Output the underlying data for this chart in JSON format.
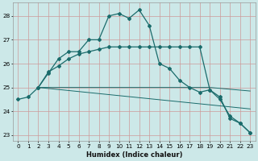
{
  "xlabel": "Humidex (Indice chaleur)",
  "bg_color": "#cce8e8",
  "grid_color": "#cc9999",
  "line_color": "#1a6b6b",
  "xlim": [
    -0.5,
    23.5
  ],
  "ylim": [
    22.75,
    28.55
  ],
  "yticks": [
    23,
    24,
    25,
    26,
    27,
    28
  ],
  "xticks": [
    0,
    1,
    2,
    3,
    4,
    5,
    6,
    7,
    8,
    9,
    10,
    11,
    12,
    13,
    14,
    15,
    16,
    17,
    18,
    19,
    20,
    21,
    22,
    23
  ],
  "curve1_x": [
    0,
    1,
    2,
    3,
    4,
    5,
    6,
    7,
    8,
    9,
    10,
    11,
    12,
    13,
    14,
    15,
    16,
    17,
    18,
    19,
    20,
    21,
    22,
    23
  ],
  "curve1_y": [
    24.5,
    24.6,
    25.0,
    25.6,
    26.2,
    26.5,
    26.5,
    27.0,
    27.0,
    28.0,
    28.1,
    27.9,
    28.25,
    27.6,
    26.0,
    25.8,
    25.3,
    25.0,
    24.8,
    24.9,
    24.6,
    23.7,
    23.5,
    23.1
  ],
  "curve2_x": [
    2,
    3,
    4,
    5,
    6,
    7,
    8,
    9,
    10,
    11,
    12,
    13,
    14,
    15,
    16,
    17,
    18,
    19,
    20,
    21,
    22,
    23
  ],
  "curve2_y": [
    25.0,
    25.65,
    25.9,
    26.2,
    26.4,
    26.5,
    26.6,
    26.7,
    26.7,
    26.7,
    26.7,
    26.7,
    26.7,
    26.7,
    26.7,
    26.7,
    26.7,
    24.9,
    24.5,
    23.8,
    23.5,
    23.1
  ],
  "line3_x": [
    2,
    19,
    23
  ],
  "line3_y": [
    25.0,
    25.0,
    24.85
  ],
  "line4_x": [
    2,
    23
  ],
  "line4_y": [
    25.0,
    24.1
  ],
  "xlabel_fontsize": 6.0,
  "tick_fontsize": 5.2
}
